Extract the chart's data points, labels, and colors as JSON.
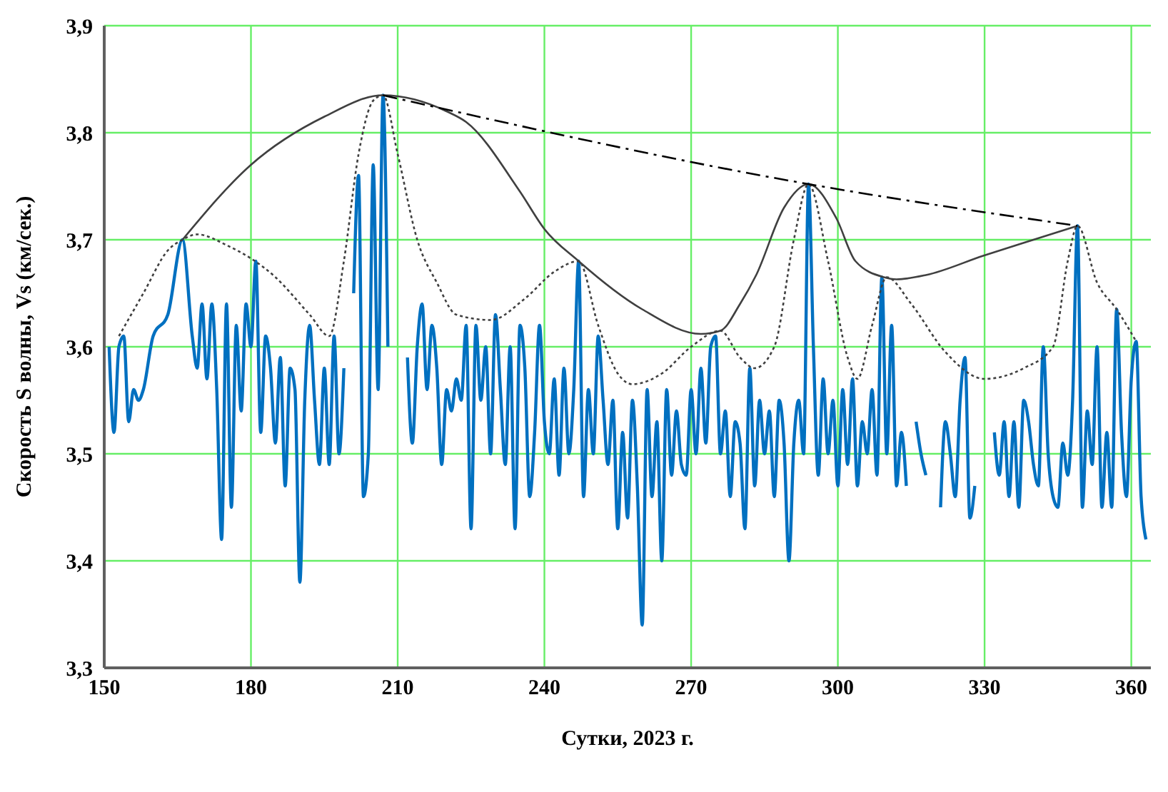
{
  "chart_data": {
    "type": "line",
    "xlabel": "Сутки, 2023 г.",
    "ylabel": "Скорость S волны, Vs (км/сек.)",
    "xlim": [
      150,
      364
    ],
    "xticks": [
      150,
      180,
      210,
      240,
      270,
      300,
      330,
      360
    ],
    "ylim": [
      3.3,
      3.9
    ],
    "yticks": [
      {
        "value": 3.3,
        "label": "3,3"
      },
      {
        "value": 3.4,
        "label": "3,4"
      },
      {
        "value": 3.5,
        "label": "3,5"
      },
      {
        "value": 3.6,
        "label": "3,6"
      },
      {
        "value": 3.7,
        "label": "3,7"
      },
      {
        "value": 3.8,
        "label": "3,8"
      },
      {
        "value": 3.9,
        "label": "3,9"
      }
    ],
    "grid": true,
    "legend": false,
    "marker": "none",
    "series": [
      {
        "color": "#0070c0",
        "line_style": "solid",
        "x": [
          151,
          152,
          153,
          154,
          155,
          156,
          157,
          158,
          160,
          163,
          166,
          168,
          169,
          170,
          171,
          172,
          173,
          174,
          175,
          176,
          177,
          178,
          179,
          180,
          181,
          182,
          183,
          184,
          185,
          186,
          187,
          188,
          189,
          190,
          191,
          192,
          193,
          194,
          195,
          196,
          197,
          198,
          199,
          200,
          201,
          202,
          203,
          204,
          205,
          206,
          207,
          208,
          209,
          210,
          211,
          212,
          213,
          214,
          215,
          216,
          217,
          218,
          219,
          220,
          221,
          222,
          223,
          224,
          225,
          226,
          227,
          228,
          229,
          230,
          231,
          232,
          233,
          234,
          235,
          236,
          237,
          238,
          239,
          240,
          241,
          242,
          243,
          244,
          245,
          246,
          247,
          248,
          249,
          250,
          251,
          252,
          253,
          254,
          255,
          256,
          257,
          258,
          259,
          260,
          261,
          262,
          263,
          264,
          265,
          266,
          267,
          268,
          269,
          270,
          271,
          272,
          273,
          274,
          275,
          276,
          277,
          278,
          279,
          280,
          281,
          282,
          283,
          284,
          285,
          286,
          287,
          288,
          289,
          290,
          291,
          292,
          293,
          294,
          295,
          296,
          297,
          298,
          299,
          300,
          301,
          302,
          303,
          304,
          305,
          306,
          307,
          308,
          309,
          310,
          311,
          312,
          313,
          314,
          315,
          316,
          317,
          318,
          319,
          320,
          321,
          322,
          323,
          324,
          325,
          326,
          327,
          328,
          329,
          330,
          331,
          332,
          333,
          334,
          335,
          336,
          337,
          338,
          339,
          340,
          341,
          342,
          343,
          344,
          345,
          346,
          347,
          348,
          349,
          350,
          351,
          352,
          353,
          354,
          355,
          356,
          357,
          358,
          359,
          360,
          361,
          362,
          363
        ],
        "values": [
          3.6,
          3.52,
          3.6,
          3.61,
          3.53,
          3.56,
          3.55,
          3.56,
          3.61,
          3.63,
          3.7,
          3.61,
          3.58,
          3.64,
          3.57,
          3.64,
          3.56,
          3.42,
          3.64,
          3.45,
          3.62,
          3.54,
          3.64,
          3.6,
          3.68,
          3.52,
          3.61,
          3.58,
          3.51,
          3.59,
          3.47,
          3.58,
          3.56,
          3.38,
          3.55,
          3.62,
          3.55,
          3.49,
          3.58,
          3.49,
          3.61,
          3.5,
          3.58,
          null,
          3.65,
          3.76,
          3.46,
          3.5,
          3.77,
          3.56,
          3.835,
          3.6,
          null,
          null,
          null,
          3.59,
          3.51,
          3.6,
          3.64,
          3.56,
          3.62,
          3.58,
          3.49,
          3.56,
          3.54,
          3.57,
          3.55,
          3.62,
          3.43,
          3.62,
          3.55,
          3.6,
          3.5,
          3.63,
          3.56,
          3.49,
          3.6,
          3.43,
          3.62,
          3.58,
          3.46,
          3.52,
          3.62,
          3.53,
          3.5,
          3.57,
          3.48,
          3.58,
          3.5,
          3.56,
          3.68,
          3.46,
          3.56,
          3.5,
          3.61,
          3.55,
          3.49,
          3.55,
          3.43,
          3.52,
          3.44,
          3.55,
          3.47,
          3.34,
          3.56,
          3.46,
          3.53,
          3.4,
          3.56,
          3.48,
          3.54,
          3.49,
          3.48,
          3.56,
          3.5,
          3.58,
          3.51,
          3.6,
          3.61,
          3.5,
          3.54,
          3.46,
          3.53,
          3.51,
          3.43,
          3.58,
          3.47,
          3.55,
          3.5,
          3.54,
          3.46,
          3.55,
          3.51,
          3.4,
          3.51,
          3.55,
          3.5,
          3.752,
          3.6,
          3.48,
          3.57,
          3.5,
          3.55,
          3.47,
          3.56,
          3.49,
          3.57,
          3.47,
          3.53,
          3.5,
          3.56,
          3.48,
          3.665,
          3.5,
          3.62,
          3.47,
          3.52,
          3.47,
          null,
          3.53,
          3.5,
          3.48,
          null,
          null,
          3.45,
          3.53,
          3.5,
          3.46,
          3.55,
          3.59,
          3.44,
          3.47,
          null,
          null,
          null,
          3.52,
          3.48,
          3.53,
          3.46,
          3.53,
          3.45,
          3.55,
          3.53,
          3.49,
          3.47,
          3.6,
          3.5,
          3.46,
          3.45,
          3.51,
          3.48,
          3.55,
          3.713,
          3.45,
          3.54,
          3.49,
          3.6,
          3.45,
          3.52,
          3.45,
          3.635,
          3.52,
          3.46,
          3.57,
          3.605,
          3.46,
          3.42
        ]
      },
      {
        "color": "#404040",
        "line_style": "solid",
        "x": [
          166,
          180,
          195,
          207,
          220,
          224,
          235,
          240,
          247,
          260,
          272,
          276,
          280,
          283.3,
          289,
          294,
          299.7,
          303.6,
          309.4,
          312,
          318,
          329.7,
          340,
          349
        ],
        "values": [
          3.7,
          3.77,
          3.815,
          3.835,
          3.82,
          3.81,
          3.745,
          3.71,
          3.68,
          3.635,
          3.612,
          3.615,
          3.64,
          3.667,
          3.73,
          3.752,
          3.72,
          3.68,
          3.665,
          3.663,
          3.667,
          3.685,
          3.7,
          3.713
        ]
      },
      {
        "color": "#404040",
        "line_style": "dotted",
        "x": [
          153,
          158,
          163,
          166,
          169,
          175,
          185,
          192,
          196,
          199,
          202,
          205,
          207,
          210,
          214,
          218,
          222,
          229,
          236,
          242,
          247,
          251,
          255,
          258,
          264,
          270,
          276,
          280,
          283,
          287,
          291,
          294,
          298,
          302,
          304,
          307,
          310,
          315,
          322,
          330,
          338,
          344,
          347,
          349,
          353,
          357,
          361
        ],
        "values": [
          3.61,
          3.65,
          3.69,
          3.7,
          3.705,
          3.695,
          3.665,
          3.63,
          3.61,
          3.68,
          3.78,
          3.83,
          3.835,
          3.78,
          3.7,
          3.66,
          3.63,
          3.625,
          3.645,
          3.67,
          3.68,
          3.62,
          3.575,
          3.565,
          3.575,
          3.6,
          3.615,
          3.59,
          3.58,
          3.6,
          3.7,
          3.752,
          3.68,
          3.59,
          3.57,
          3.62,
          3.665,
          3.64,
          3.595,
          3.57,
          3.58,
          3.6,
          3.68,
          3.713,
          3.66,
          3.635,
          3.605
        ]
      },
      {
        "color": "#000000",
        "line_style": "dashed",
        "x": [
          207,
          294,
          349
        ],
        "values": [
          3.835,
          3.752,
          3.713
        ]
      }
    ]
  }
}
